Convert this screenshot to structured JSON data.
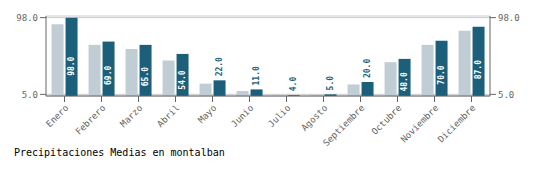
{
  "chart_data": {
    "type": "bar",
    "title": "Precipitaciones Medias en montalban",
    "categories": [
      "Enero",
      "Febrero",
      "Marzo",
      "Abril",
      "Mayo",
      "Junio",
      "Julio",
      "Agosto",
      "Septiembre",
      "Octubre",
      "Noviembre",
      "Diciembre"
    ],
    "series": [
      {
        "color": "#c0cdd4",
        "values": [
          90.0,
          65.0,
          60.0,
          46.0,
          18.0,
          9.0,
          3.5,
          4.0,
          17.0,
          44.0,
          65.0,
          82.0
        ]
      },
      {
        "color": "#1b5f7a",
        "values": [
          98.0,
          69.0,
          65.0,
          54.0,
          22.0,
          11.0,
          4.0,
          5.0,
          20.0,
          48.0,
          70.0,
          87.0
        ],
        "data_labels": true,
        "value_labels": [
          "98.0",
          "69.0",
          "65.0",
          "54.0",
          "22.0",
          "11.0",
          "4.0",
          "5.0",
          "20.0",
          "48.0",
          "70.0",
          "87.0"
        ]
      }
    ],
    "ylim": [
      3,
      100
    ],
    "yticks": [
      {
        "value": 5,
        "label": "5.0"
      },
      {
        "value": 98,
        "label": "98.0"
      }
    ],
    "y2lim": [
      3,
      100
    ],
    "y2ticks": [
      {
        "value": 5,
        "label": "5.0"
      },
      {
        "value": 98,
        "label": "98.0"
      }
    ],
    "grid": true
  }
}
